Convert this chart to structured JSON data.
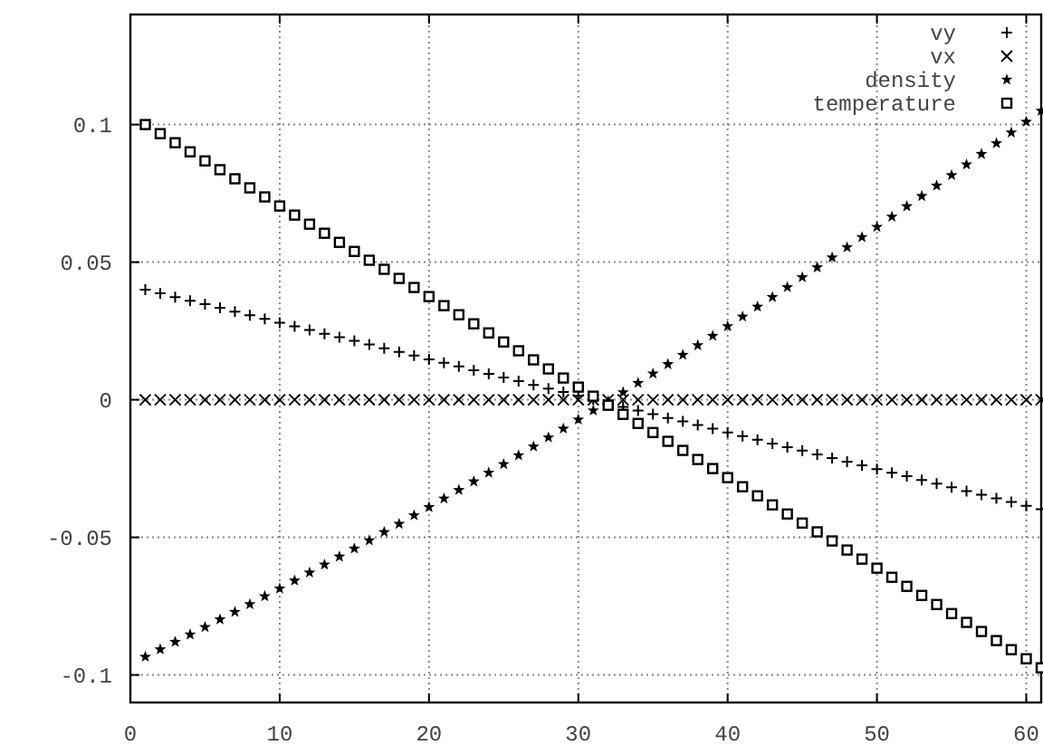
{
  "chart_data": {
    "type": "scatter",
    "x": [
      1,
      2,
      3,
      4,
      5,
      6,
      7,
      8,
      9,
      10,
      11,
      12,
      13,
      14,
      15,
      16,
      17,
      18,
      19,
      20,
      21,
      22,
      23,
      24,
      25,
      26,
      27,
      28,
      29,
      30,
      31,
      32,
      33,
      34,
      35,
      36,
      37,
      38,
      39,
      40,
      41,
      42,
      43,
      44,
      45,
      46,
      47,
      48,
      49,
      50,
      51,
      52,
      53,
      54,
      55,
      56,
      57,
      58,
      59,
      60,
      61
    ],
    "series": [
      {
        "name": "vy",
        "color": "#000000",
        "marker": "plus",
        "values": [
          0.04,
          0.0387,
          0.0373,
          0.036,
          0.0347,
          0.0334,
          0.032,
          0.0307,
          0.0294,
          0.028,
          0.0267,
          0.0254,
          0.024,
          0.0227,
          0.0214,
          0.0201,
          0.0187,
          0.0174,
          0.0161,
          0.0147,
          0.0134,
          0.0121,
          0.0107,
          0.0094,
          0.0081,
          0.0068,
          0.0054,
          0.0041,
          0.0028,
          0.0014,
          0.0001,
          -0.0012,
          -0.0026,
          -0.0039,
          -0.0052,
          -0.0066,
          -0.0079,
          -0.0092,
          -0.0105,
          -0.0119,
          -0.0132,
          -0.0145,
          -0.0159,
          -0.0172,
          -0.0185,
          -0.0199,
          -0.0212,
          -0.0225,
          -0.0238,
          -0.0252,
          -0.0265,
          -0.0278,
          -0.0292,
          -0.0305,
          -0.0318,
          -0.0332,
          -0.0345,
          -0.0358,
          -0.0371,
          -0.0385,
          -0.0398
        ]
      },
      {
        "name": "vx",
        "color": "#000000",
        "marker": "cross",
        "values": [
          0,
          0,
          0,
          0,
          0,
          0,
          0,
          0,
          0,
          0,
          0,
          0,
          0,
          0,
          0,
          0,
          0,
          0,
          0,
          0,
          0,
          0,
          0,
          0,
          0,
          0,
          0,
          0,
          0,
          0,
          0,
          0,
          0,
          0,
          0,
          0,
          0,
          0,
          0,
          0,
          0,
          0,
          0,
          0,
          0,
          0,
          0,
          0,
          0,
          0,
          0,
          0,
          0,
          0,
          0,
          0,
          0,
          0,
          0,
          0,
          0
        ]
      },
      {
        "name": "density",
        "color": "#000000",
        "marker": "star",
        "values": [
          -0.0934,
          -0.0907,
          -0.088,
          -0.0853,
          -0.0826,
          -0.0798,
          -0.0771,
          -0.0743,
          -0.0714,
          -0.0686,
          -0.0657,
          -0.0628,
          -0.0599,
          -0.057,
          -0.0541,
          -0.0511,
          -0.0481,
          -0.0451,
          -0.042,
          -0.039,
          -0.0359,
          -0.0328,
          -0.0297,
          -0.0265,
          -0.0234,
          -0.0202,
          -0.017,
          -0.0137,
          -0.0105,
          -0.0072,
          -0.0039,
          -0.0006,
          0.0027,
          0.0061,
          0.0095,
          0.0129,
          0.0163,
          0.0198,
          0.0232,
          0.0267,
          0.0302,
          0.0338,
          0.0373,
          0.0409,
          0.0445,
          0.0481,
          0.0517,
          0.0554,
          0.0591,
          0.0628,
          0.0665,
          0.0703,
          0.074,
          0.0778,
          0.0816,
          0.0855,
          0.0893,
          0.0932,
          0.0971,
          0.101,
          0.105
        ]
      },
      {
        "name": "temperature",
        "color": "#000000",
        "marker": "square",
        "values": [
          0.1,
          0.0967,
          0.0934,
          0.0901,
          0.0868,
          0.0836,
          0.0803,
          0.077,
          0.0737,
          0.0704,
          0.0671,
          0.0638,
          0.0605,
          0.0572,
          0.0539,
          0.0507,
          0.0474,
          0.0441,
          0.0408,
          0.0375,
          0.0342,
          0.0309,
          0.0276,
          0.0243,
          0.021,
          0.0178,
          0.0145,
          0.0112,
          0.0079,
          0.0046,
          0.0013,
          -0.002,
          -0.0053,
          -0.0086,
          -0.0119,
          -0.0151,
          -0.0184,
          -0.0217,
          -0.025,
          -0.0283,
          -0.0316,
          -0.0349,
          -0.0382,
          -0.0415,
          -0.0448,
          -0.048,
          -0.0513,
          -0.0546,
          -0.0579,
          -0.0612,
          -0.0645,
          -0.0678,
          -0.0711,
          -0.0744,
          -0.0777,
          -0.0809,
          -0.0842,
          -0.0875,
          -0.0908,
          -0.0941,
          -0.0974
        ]
      }
    ],
    "xlim": [
      0,
      61
    ],
    "xticks": [
      0,
      10,
      20,
      30,
      40,
      50,
      60
    ],
    "ylim": [
      -0.11,
      0.14
    ],
    "yticks": [
      -0.1,
      -0.05,
      0,
      0.05,
      0.1
    ],
    "grid": true,
    "legend": "top right"
  }
}
